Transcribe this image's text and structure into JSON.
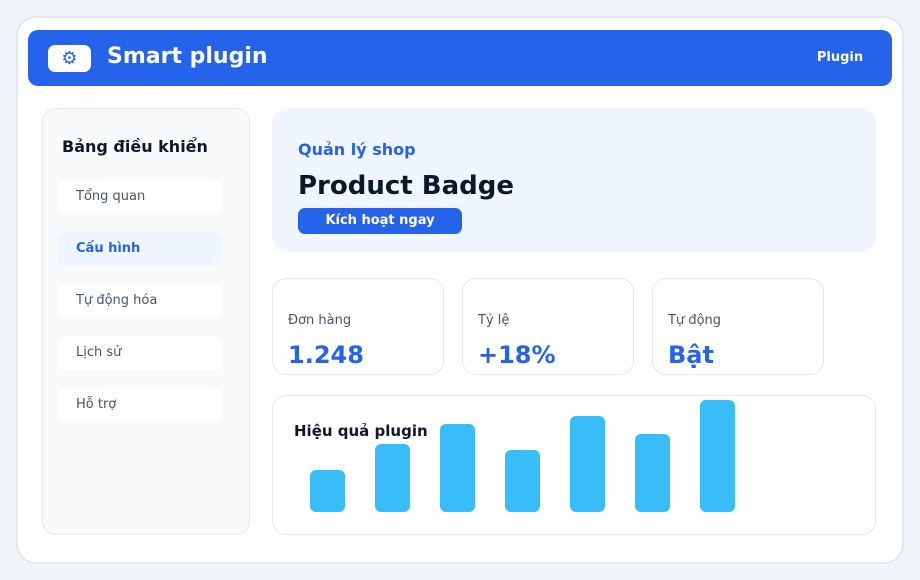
{
  "header": {
    "icon": "⚙",
    "title": "Smart plugin",
    "link": "Plugin"
  },
  "sidebar": {
    "title": "Bảng điều khiển",
    "items": [
      "Tổng quan",
      "Cấu hình",
      "Tự động hóa",
      "Lịch sử",
      "Hỗ trợ"
    ],
    "active": 1
  },
  "hero": {
    "kicker": "Quản lý shop",
    "title": "Product Badge",
    "button": "Kích hoạt ngay"
  },
  "stats": [
    {
      "label": "Đơn hàng",
      "value": "1.248"
    },
    {
      "label": "Tỷ lệ",
      "value": "+18%"
    },
    {
      "label": "Tự động",
      "value": "Bật"
    }
  ],
  "chart": {
    "title": "Hiệu quả plugin",
    "values": [
      42,
      68,
      88,
      62,
      96,
      78,
      112
    ],
    "color": "#38bdf8"
  }
}
